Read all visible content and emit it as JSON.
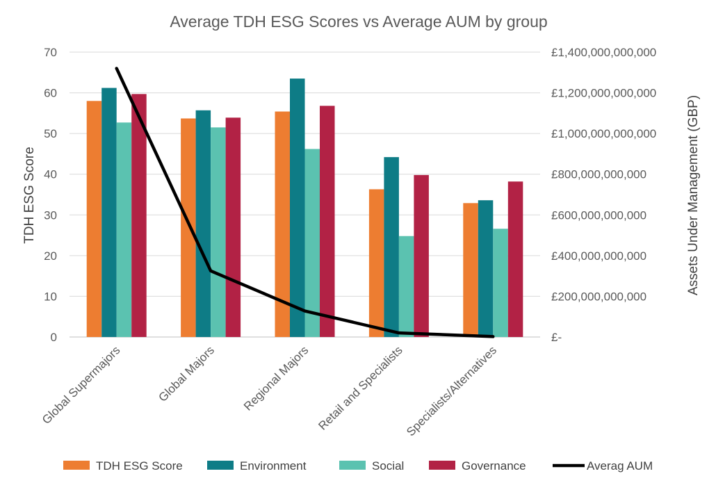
{
  "chart_data": {
    "type": "bar",
    "title": "Average TDH ESG Scores vs Average AUM by group",
    "categories": [
      "Global Supermajors",
      "Global Majors",
      "Regional Majors",
      "Retail and Specialists",
      "Specialists/Alternatives"
    ],
    "series": [
      {
        "name": "TDH ESG Score",
        "type": "bar",
        "axis": "left",
        "color": "#ED7D31",
        "values": [
          58,
          53.7,
          55.4,
          36.3,
          32.9
        ]
      },
      {
        "name": "Environment",
        "type": "bar",
        "axis": "left",
        "color": "#0E7C86",
        "values": [
          61.2,
          55.7,
          63.5,
          44.2,
          33.6
        ]
      },
      {
        "name": "Social",
        "type": "bar",
        "axis": "left",
        "color": "#5BC2B0",
        "values": [
          52.7,
          51.5,
          46.2,
          24.8,
          26.6
        ]
      },
      {
        "name": "Governance",
        "type": "bar",
        "axis": "left",
        "color": "#B22245",
        "values": [
          59.7,
          53.9,
          56.8,
          39.8,
          38.2
        ]
      },
      {
        "name": "Averag AUM",
        "type": "line",
        "axis": "right",
        "color": "#000000",
        "values": [
          1320000000000,
          325000000000,
          128000000000,
          20000000000,
          2000000000
        ]
      }
    ],
    "ylabel": "TDH ESG Score",
    "y2label": "Assets Under Management (GBP)",
    "ylim": [
      0,
      70
    ],
    "y2lim": [
      0,
      1400000000000
    ],
    "yticks": [
      "0",
      "10",
      "20",
      "30",
      "40",
      "50",
      "60",
      "70"
    ],
    "y2ticks": [
      "£-",
      "£200,000,000,000",
      "£400,000,000,000",
      "£600,000,000,000",
      "£800,000,000,000",
      "£1,000,000,000,000",
      "£1,200,000,000,000",
      "£1,400,000,000,000"
    ],
    "grid": true,
    "legend": "bottom"
  }
}
